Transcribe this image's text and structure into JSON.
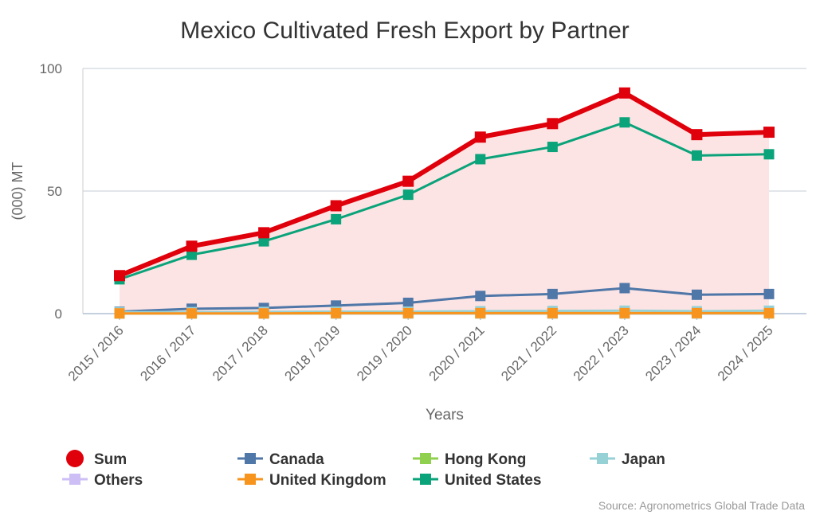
{
  "chart_data": {
    "type": "line",
    "title": "Mexico Cultivated Fresh Export by Partner",
    "xlabel": "Years",
    "ylabel": "(000) MT",
    "ylim": [
      0,
      100
    ],
    "yticks": [
      0,
      50,
      100
    ],
    "grid": true,
    "legend_position": "bottom",
    "categories": [
      "2015 / 2016",
      "2016 / 2017",
      "2017 / 2018",
      "2018 / 2019",
      "2019 / 2020",
      "2020 / 2021",
      "2021 / 2022",
      "2022 / 2023",
      "2023 / 2024",
      "2024 / 2025"
    ],
    "series": [
      {
        "name": "Sum",
        "color": "#e0000b",
        "values": [
          15.5,
          27.5,
          33,
          44,
          54,
          72,
          77.5,
          90,
          73,
          74
        ],
        "area": true,
        "area_color": "#fde4e4"
      },
      {
        "name": "Canada",
        "color": "#4f77a8",
        "values": [
          0.8,
          2,
          2.3,
          3.3,
          4.4,
          7.2,
          8,
          10.4,
          7.7,
          8
        ]
      },
      {
        "name": "Hong Kong",
        "color": "#8fd14f",
        "values": [
          0.05,
          0.05,
          0.05,
          0.05,
          0.05,
          0.05,
          0.05,
          0.05,
          0.05,
          0.05
        ]
      },
      {
        "name": "Japan",
        "color": "#96d1d6",
        "values": [
          0.6,
          0.6,
          0.7,
          0.8,
          0.8,
          1,
          1.1,
          1.2,
          1,
          1.2
        ]
      },
      {
        "name": "Others",
        "color": "#cdbff5",
        "values": [
          0.1,
          0.1,
          0.1,
          0.1,
          0.1,
          0.1,
          0.1,
          0.1,
          0.1,
          0.1
        ]
      },
      {
        "name": "United Kingdom",
        "color": "#f7941d",
        "values": [
          0.1,
          0.1,
          0.1,
          0.2,
          0.2,
          0.2,
          0.2,
          0.2,
          0.2,
          0.2
        ]
      },
      {
        "name": "United States",
        "color": "#0aa37a",
        "values": [
          14,
          24,
          29.5,
          38.5,
          48.5,
          63,
          68,
          78,
          64.5,
          65
        ]
      }
    ],
    "source": "Source: Agronometrics Global Trade Data"
  }
}
